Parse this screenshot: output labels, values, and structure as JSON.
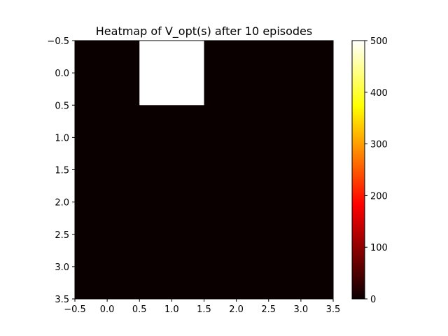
{
  "chart_data": {
    "type": "heatmap",
    "title": "Heatmap of V_opt(s) after 10 episodes",
    "xlabel": "",
    "ylabel": "",
    "rows": 4,
    "cols": 4,
    "values": [
      [
        0,
        500,
        0,
        0
      ],
      [
        0,
        0,
        0,
        0
      ],
      [
        0,
        0,
        0,
        0
      ],
      [
        0,
        0,
        0,
        0
      ]
    ],
    "xlim": [
      -0.5,
      3.5
    ],
    "ylim": [
      3.5,
      -0.5
    ],
    "x_ticks": [
      -0.5,
      0.0,
      0.5,
      1.0,
      1.5,
      2.0,
      2.5,
      3.0,
      3.5
    ],
    "y_ticks": [
      -0.5,
      0.0,
      0.5,
      1.0,
      1.5,
      2.0,
      2.5,
      3.0,
      3.5
    ],
    "x_tick_labels": [
      "−0.5",
      "0.0",
      "0.5",
      "1.0",
      "1.5",
      "2.0",
      "2.5",
      "3.0",
      "3.5"
    ],
    "y_tick_labels": [
      "−0.5",
      "0.0",
      "0.5",
      "1.0",
      "1.5",
      "2.0",
      "2.5",
      "3.0",
      "3.5"
    ],
    "colormap": "hot",
    "colorbar": {
      "vmin": 0,
      "vmax": 500,
      "ticks": [
        0,
        100,
        200,
        300,
        400,
        500
      ],
      "tick_labels": [
        "0",
        "100",
        "200",
        "300",
        "400",
        "500"
      ]
    },
    "grid": false,
    "legend": "none"
  }
}
